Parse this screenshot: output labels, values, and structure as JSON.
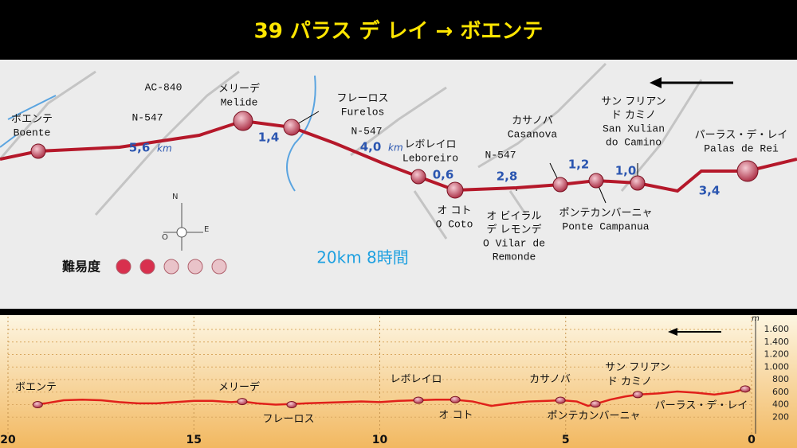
{
  "header": {
    "title": "39 パラス デ レイ → ボエンテ"
  },
  "map": {
    "places": [
      {
        "lines": [
          "ボエンテ",
          "Boente"
        ]
      },
      {
        "lines": [
          "メリーデ",
          "Melide"
        ]
      },
      {
        "lines": [
          "フレーロス",
          "Furelos"
        ]
      },
      {
        "lines": [
          "レボレイロ",
          "Leboreiro"
        ]
      },
      {
        "lines": [
          "オ コト",
          "O Coto"
        ]
      },
      {
        "lines": [
          "オ ビイラル",
          "デ レモンデ",
          "O Vilar de",
          "Remonde"
        ]
      },
      {
        "lines": [
          "カサノバ",
          "Casanova"
        ]
      },
      {
        "lines": [
          "ポンテカンバーニャ",
          "Ponte Campanua"
        ]
      },
      {
        "lines": [
          "サン フリアン",
          "ド カミノ",
          "San Xulian",
          "do Camino"
        ]
      },
      {
        "lines": [
          "パーラス・デ・レイ",
          "Palas de Rei"
        ]
      }
    ],
    "distances": [
      {
        "value": "5,6",
        "unit": "km"
      },
      {
        "value": "1,4"
      },
      {
        "value": "4,0",
        "unit": "km"
      },
      {
        "value": "0,6"
      },
      {
        "value": "2,8"
      },
      {
        "value": "1,2"
      },
      {
        "value": "1,0"
      },
      {
        "value": "3,4"
      }
    ],
    "roads": [
      "AC-840",
      "N-547",
      "N-547",
      "N-547"
    ],
    "compass": [
      "N",
      "O",
      "E"
    ],
    "difficulty_label": "難易度",
    "summary": "20km 8時間"
  },
  "profile": {
    "unit": "m",
    "xlim": [
      20,
      0
    ],
    "xticks": [
      20,
      15,
      10,
      5,
      0
    ],
    "ylim": [
      0,
      1600
    ],
    "yticks": [
      200,
      400,
      600,
      800,
      {
        "value": 1000,
        "label": "1.000"
      },
      {
        "value": 1200,
        "label": "1.200"
      },
      {
        "value": 1400,
        "label": "1.400"
      },
      {
        "value": 1600,
        "label": "1.600"
      }
    ],
    "color": "#e0201a",
    "x": [
      19.3,
      19,
      18.5,
      18,
      17.5,
      17,
      16.5,
      16,
      15.5,
      15,
      14.5,
      14,
      13.7,
      13.3,
      12.8,
      12.4,
      12,
      11.5,
      11,
      10.5,
      10,
      9.5,
      9,
      8.5,
      8,
      7.5,
      7,
      6.5,
      6,
      5.5,
      5.1,
      4.7,
      4.4,
      4.2,
      3.8,
      3.4,
      3.06,
      2.5,
      2,
      1.5,
      1,
      0.5,
      0.17
    ],
    "values": [
      400,
      420,
      470,
      480,
      470,
      440,
      420,
      420,
      440,
      460,
      460,
      440,
      450,
      420,
      400,
      410,
      420,
      430,
      440,
      450,
      440,
      460,
      470,
      480,
      480,
      450,
      380,
      420,
      450,
      460,
      470,
      450,
      380,
      410,
      480,
      530,
      560,
      580,
      610,
      590,
      560,
      600,
      650
    ],
    "stops": {
      "x": [
        19.2,
        13.7,
        12.37,
        8.96,
        7.97,
        5.14,
        4.2,
        3.06,
        0.17
      ],
      "values": [
        400,
        450,
        400,
        470,
        480,
        470,
        410,
        560,
        650
      ]
    },
    "labels": [
      {
        "lines": [
          "ボエンテ"
        ]
      },
      {
        "lines": [
          "メリーデ"
        ]
      },
      {
        "lines": [
          "フレーロス"
        ]
      },
      {
        "lines": [
          "レボレイロ"
        ]
      },
      {
        "lines": [
          "オ コト"
        ]
      },
      {
        "lines": [
          "カサノバ"
        ]
      },
      {
        "lines": [
          "ポンテカンバーニャ"
        ]
      },
      {
        "lines": [
          "サン フリアン",
          "ド カミノ"
        ]
      },
      {
        "lines": [
          "パーラス・デ・レイ"
        ]
      }
    ]
  }
}
